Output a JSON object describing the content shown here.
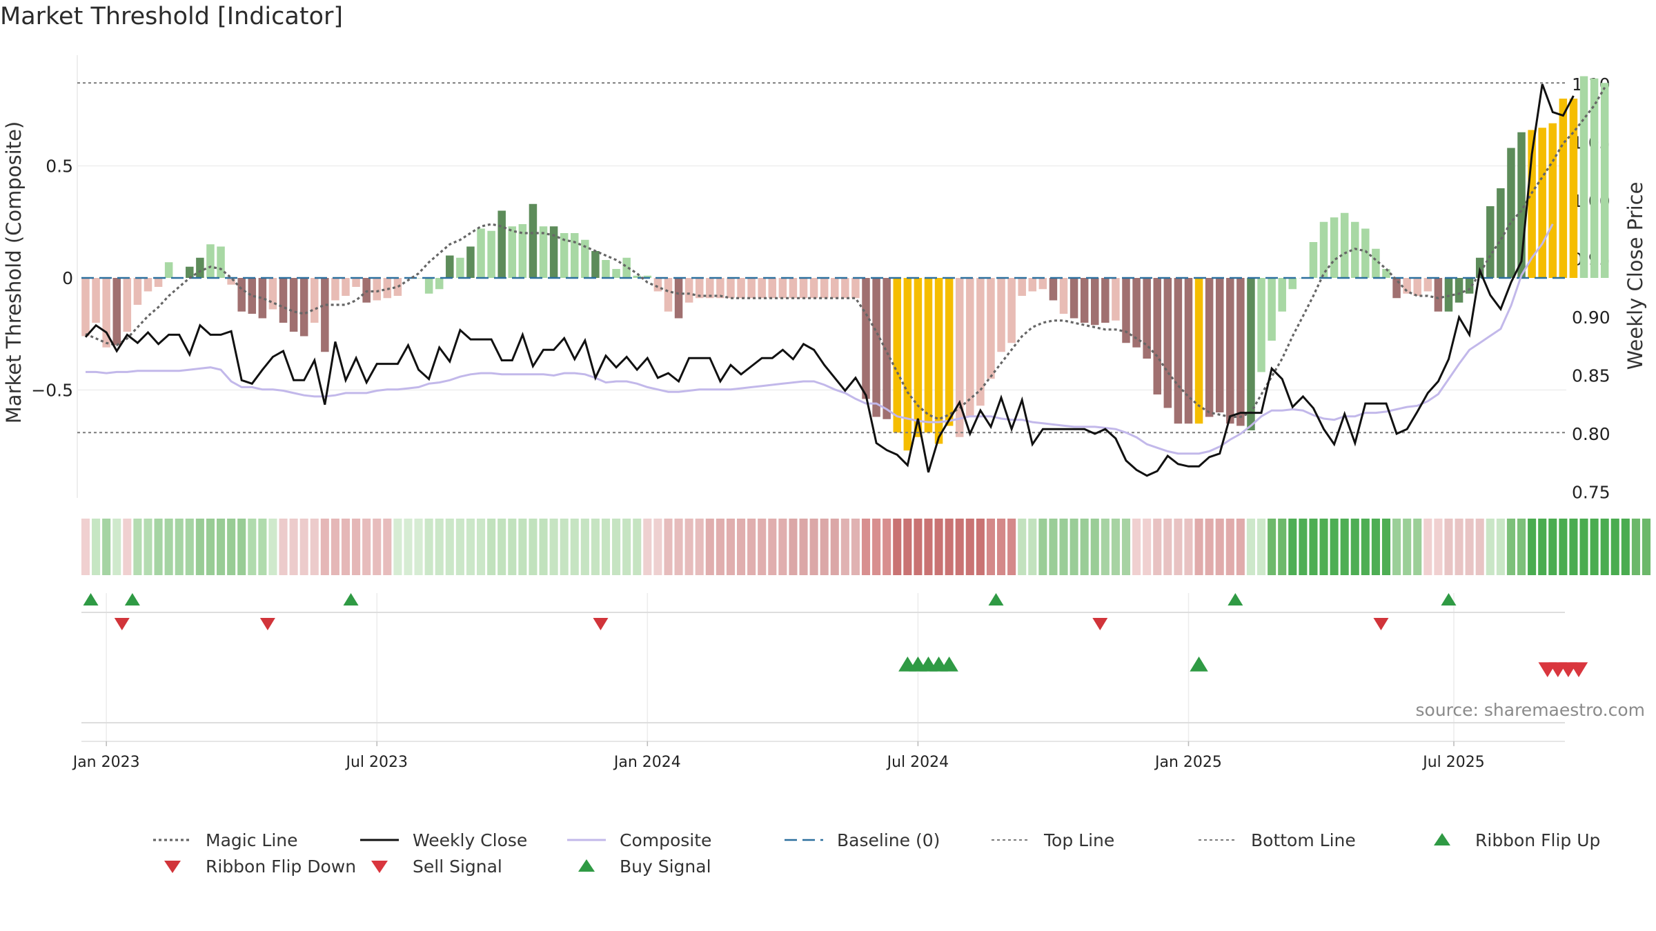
{
  "title": "Market Threshold [Indicator]",
  "source": "source: sharemaestro.com",
  "colors": {
    "magic": "#666666",
    "weekly": "#111111",
    "composite": "#c2b8ea",
    "baseline": "#2b6f9e",
    "thresh": "#7a7a7a",
    "buy": "#2f9a44",
    "sell": "#d9363e",
    "flipUp": "#2f9a44",
    "flipDown": "#d1343a",
    "yellow": "#f5bd00"
  },
  "chart_data": {
    "type": "bar",
    "title": "Market Threshold [Indicator]",
    "ylabel": "Market Threshold (Composite)",
    "y2label": "Weekly Close Price",
    "ylim": [
      -1.0,
      0.95
    ],
    "y2lim": [
      0.745,
      1.125
    ],
    "yticks": [
      {
        "v": 0.5,
        "label": "0.5"
      },
      {
        "v": 0,
        "label": "0"
      },
      {
        "v": -0.5,
        "label": "−0.5"
      }
    ],
    "y2ticks": [
      {
        "v": 0.75,
        "label": "0.75"
      },
      {
        "v": 0.8,
        "label": "0.80"
      },
      {
        "v": 0.85,
        "label": "0.85"
      },
      {
        "v": 0.9,
        "label": "0.90"
      },
      {
        "v": 0.95,
        "label": "0.95"
      },
      {
        "v": 1.0,
        "label": "1.00"
      },
      {
        "v": 1.05,
        "label": "1.05"
      },
      {
        "v": 1.1,
        "label": "1.10"
      }
    ],
    "xticks": [
      {
        "w": 2,
        "label": "Jan 2023"
      },
      {
        "w": 28,
        "label": "Jul 2023"
      },
      {
        "w": 54,
        "label": "Jan 2024"
      },
      {
        "w": 80,
        "label": "Jul 2024"
      },
      {
        "w": 106,
        "label": "Jan 2025"
      },
      {
        "w": 131.5,
        "label": "Jul 2025"
      }
    ],
    "week_start": 0,
    "weeks": 144,
    "top_line": 0.87,
    "bottom_line": -0.69,
    "baseline": 0,
    "bars": [
      -0.26,
      -0.2,
      -0.31,
      -0.3,
      -0.24,
      -0.12,
      -0.06,
      -0.04,
      0.07,
      0,
      0.05,
      0.09,
      0.15,
      0.14,
      -0.03,
      -0.15,
      -0.16,
      -0.18,
      -0.14,
      -0.2,
      -0.24,
      -0.26,
      -0.2,
      -0.33,
      -0.1,
      -0.08,
      -0.04,
      -0.11,
      -0.1,
      -0.09,
      -0.08,
      0,
      0,
      -0.07,
      -0.05,
      0.1,
      0.09,
      0.14,
      0.22,
      0.21,
      0.3,
      0.23,
      0.24,
      0.33,
      0.23,
      0.23,
      0.2,
      0.2,
      0.17,
      0.12,
      0.08,
      0.04,
      0.09,
      0.01,
      0.01,
      -0.06,
      -0.15,
      -0.18,
      -0.11,
      -0.09,
      -0.09,
      -0.09,
      -0.09,
      -0.09,
      -0.09,
      -0.09,
      -0.09,
      -0.09,
      -0.09,
      -0.09,
      -0.09,
      -0.09,
      -0.09,
      -0.09,
      -0.09,
      -0.54,
      -0.62,
      -0.63,
      -0.69,
      -0.77,
      -0.71,
      -0.69,
      -0.74,
      -0.66,
      -0.71,
      -0.62,
      -0.57,
      -0.45,
      -0.33,
      -0.29,
      -0.08,
      -0.06,
      -0.05,
      -0.1,
      -0.16,
      -0.18,
      -0.2,
      -0.21,
      -0.2,
      -0.19,
      -0.29,
      -0.31,
      -0.36,
      -0.52,
      -0.58,
      -0.65,
      -0.65,
      -0.65,
      -0.62,
      -0.6,
      -0.65,
      -0.66,
      -0.68,
      -0.42,
      -0.28,
      -0.15,
      -0.05,
      0,
      0.16,
      0.25,
      0.27,
      0.29,
      0.25,
      0.22,
      0.13,
      0.04,
      -0.09,
      -0.07,
      -0.08,
      -0.06,
      -0.15,
      -0.15,
      -0.11,
      -0.07,
      0.09,
      0.32,
      0.4,
      0.58,
      0.65,
      0.66,
      0.67,
      0.69,
      0.8,
      0.8,
      0.9,
      0.89,
      0.87
    ],
    "bar_groups": [
      {
        "name": "Dark green",
        "color": "#5d8c5a",
        "weeks": [
          10,
          11,
          35,
          37,
          40,
          43,
          45,
          49,
          109,
          110,
          111,
          112,
          131,
          132,
          133,
          134,
          135,
          136,
          137,
          138
        ]
      },
      {
        "name": "Light green",
        "color": "#a8d8a4",
        "weeks": [
          8,
          9,
          12,
          13,
          31,
          32,
          33,
          34,
          36,
          38,
          39,
          41,
          42,
          44,
          46,
          47,
          48,
          50,
          51,
          52,
          53,
          54,
          113,
          114,
          115,
          116,
          130
        ]
      },
      {
        "name": "Dark red",
        "color": "#a07070",
        "weeks": [
          3,
          15,
          16,
          17,
          19,
          20,
          21,
          23,
          27,
          57,
          75,
          76,
          77,
          93,
          95,
          96,
          97,
          98,
          100,
          101,
          102,
          103,
          104,
          105,
          106,
          107,
          108,
          109,
          110,
          111,
          126,
          130
        ]
      },
      {
        "name": "Yellow",
        "color": "#f5bd00",
        "weeks": [
          78,
          79,
          80,
          81,
          82,
          83,
          107,
          139,
          140,
          141,
          142,
          143
        ]
      }
    ],
    "magic_line": [
      -0.25,
      -0.27,
      -0.29,
      -0.3,
      -0.27,
      -0.22,
      -0.17,
      -0.13,
      -0.08,
      -0.04,
      0,
      0.03,
      0.05,
      0.04,
      0,
      -0.05,
      -0.08,
      -0.09,
      -0.11,
      -0.13,
      -0.15,
      -0.16,
      -0.14,
      -0.12,
      -0.12,
      -0.12,
      -0.1,
      -0.06,
      -0.06,
      -0.05,
      -0.04,
      -0.01,
      0.02,
      0.07,
      0.11,
      0.15,
      0.17,
      0.2,
      0.23,
      0.24,
      0.23,
      0.21,
      0.2,
      0.2,
      0.2,
      0.19,
      0.17,
      0.16,
      0.14,
      0.12,
      0.1,
      0.08,
      0.05,
      0.02,
      -0.02,
      -0.04,
      -0.06,
      -0.07,
      -0.07,
      -0.08,
      -0.08,
      -0.08,
      -0.09,
      -0.09,
      -0.09,
      -0.09,
      -0.09,
      -0.09,
      -0.09,
      -0.09,
      -0.09,
      -0.09,
      -0.09,
      -0.09,
      -0.09,
      -0.16,
      -0.24,
      -0.33,
      -0.42,
      -0.51,
      -0.57,
      -0.61,
      -0.63,
      -0.61,
      -0.58,
      -0.54,
      -0.5,
      -0.44,
      -0.38,
      -0.32,
      -0.26,
      -0.22,
      -0.2,
      -0.19,
      -0.19,
      -0.2,
      -0.21,
      -0.22,
      -0.23,
      -0.23,
      -0.24,
      -0.27,
      -0.3,
      -0.35,
      -0.42,
      -0.48,
      -0.53,
      -0.57,
      -0.6,
      -0.61,
      -0.62,
      -0.62,
      -0.6,
      -0.52,
      -0.44,
      -0.36,
      -0.26,
      -0.17,
      -0.08,
      0.02,
      0.08,
      0.11,
      0.13,
      0.12,
      0.08,
      0.04,
      -0.01,
      -0.06,
      -0.08,
      -0.08,
      -0.09,
      -0.08,
      -0.07,
      -0.05,
      0.02,
      0.1,
      0.17,
      0.25,
      0.3,
      0.38,
      0.45,
      0.52,
      0.6,
      0.65,
      0.71,
      0.77,
      0.85
    ],
    "composite": [
      0.853,
      0.853,
      0.852,
      0.853,
      0.853,
      0.854,
      0.854,
      0.854,
      0.854,
      0.854,
      0.855,
      0.856,
      0.857,
      0.855,
      0.845,
      0.84,
      0.84,
      0.838,
      0.838,
      0.837,
      0.835,
      0.833,
      0.832,
      0.832,
      0.833,
      0.835,
      0.835,
      0.835,
      0.837,
      0.838,
      0.838,
      0.839,
      0.84,
      0.843,
      0.844,
      0.846,
      0.849,
      0.851,
      0.852,
      0.852,
      0.851,
      0.851,
      0.851,
      0.851,
      0.851,
      0.85,
      0.852,
      0.852,
      0.851,
      0.848,
      0.844,
      0.845,
      0.845,
      0.843,
      0.84,
      0.838,
      0.836,
      0.836,
      0.837,
      0.838,
      0.838,
      0.838,
      0.838,
      0.839,
      0.84,
      0.841,
      0.842,
      0.843,
      0.844,
      0.845,
      0.845,
      0.842,
      0.838,
      0.835,
      0.83,
      0.826,
      0.826,
      0.821,
      0.815,
      0.813,
      0.811,
      0.81,
      0.81,
      0.811,
      0.813,
      0.815,
      0.815,
      0.815,
      0.813,
      0.812,
      0.812,
      0.81,
      0.809,
      0.808,
      0.807,
      0.806,
      0.806,
      0.806,
      0.805,
      0.804,
      0.801,
      0.797,
      0.791,
      0.788,
      0.785,
      0.783,
      0.783,
      0.783,
      0.785,
      0.789,
      0.795,
      0.8,
      0.807,
      0.815,
      0.82,
      0.82,
      0.821,
      0.82,
      0.816,
      0.813,
      0.812,
      0.815,
      0.815,
      0.818,
      0.818,
      0.819,
      0.821,
      0.823,
      0.824,
      0.828,
      0.834,
      0.847,
      0.86,
      0.872,
      0.878,
      0.884,
      0.89,
      0.91,
      0.936,
      0.951,
      0.963,
      0.98
    ],
    "weekly_close": [
      0.883,
      0.893,
      0.887,
      0.871,
      0.885,
      0.878,
      0.887,
      0.877,
      0.885,
      0.885,
      0.868,
      0.893,
      0.885,
      0.885,
      0.888,
      0.846,
      0.843,
      0.855,
      0.866,
      0.871,
      0.846,
      0.846,
      0.863,
      0.825,
      0.879,
      0.846,
      0.865,
      0.844,
      0.86,
      0.86,
      0.86,
      0.876,
      0.855,
      0.847,
      0.874,
      0.862,
      0.889,
      0.881,
      0.881,
      0.881,
      0.863,
      0.863,
      0.885,
      0.858,
      0.872,
      0.872,
      0.882,
      0.864,
      0.88,
      0.848,
      0.867,
      0.857,
      0.866,
      0.855,
      0.865,
      0.848,
      0.852,
      0.845,
      0.865,
      0.865,
      0.865,
      0.845,
      0.859,
      0.851,
      0.858,
      0.865,
      0.865,
      0.872,
      0.864,
      0.877,
      0.872,
      0.859,
      0.848,
      0.837,
      0.848,
      0.833,
      0.792,
      0.786,
      0.782,
      0.773,
      0.813,
      0.767,
      0.797,
      0.812,
      0.827,
      0.8,
      0.82,
      0.806,
      0.831,
      0.804,
      0.829,
      0.791,
      0.804,
      0.804,
      0.804,
      0.804,
      0.804,
      0.8,
      0.804,
      0.796,
      0.777,
      0.769,
      0.764,
      0.768,
      0.781,
      0.774,
      0.772,
      0.772,
      0.78,
      0.783,
      0.815,
      0.818,
      0.818,
      0.818,
      0.856,
      0.847,
      0.823,
      0.832,
      0.822,
      0.804,
      0.791,
      0.817,
      0.792,
      0.826,
      0.826,
      0.826,
      0.8,
      0.804,
      0.819,
      0.835,
      0.845,
      0.864,
      0.9,
      0.885,
      0.94,
      0.919,
      0.907,
      0.93,
      0.948,
      1.04,
      1.1,
      1.076,
      1.073,
      1.09
    ],
    "ribbon": [
      {
        "c": "#f0d0d0",
        "n": 1
      },
      {
        "c": "#c6e6c3",
        "n": 1
      },
      {
        "c": "#a5d4a3",
        "n": 1
      },
      {
        "c": "#cfe9cc",
        "n": 1
      },
      {
        "c": "#f0d0d0",
        "n": 1
      },
      {
        "c": "#b4dcb1",
        "n": 2
      },
      {
        "c": "#a5d4a3",
        "n": 4
      },
      {
        "c": "#98cc95",
        "n": 5
      },
      {
        "c": "#b0dbad",
        "n": 2
      },
      {
        "c": "#cfe9cc",
        "n": 1
      },
      {
        "c": "#eccbcb",
        "n": 4
      },
      {
        "c": "#e5b7b7",
        "n": 4
      },
      {
        "c": "#e7bcbc",
        "n": 3
      },
      {
        "c": "#d6ecd3",
        "n": 3
      },
      {
        "c": "#cbe7c8",
        "n": 6
      },
      {
        "c": "#c1e2bd",
        "n": 6
      },
      {
        "c": "#c6e4c2",
        "n": 9
      },
      {
        "c": "#eed0d0",
        "n": 2
      },
      {
        "c": "#e6bcbc",
        "n": 4
      },
      {
        "c": "#e0aeae",
        "n": 8
      },
      {
        "c": "#dba7a7",
        "n": 5
      },
      {
        "c": "#e0b2b2",
        "n": 2
      },
      {
        "c": "#d88f8f",
        "n": 3
      },
      {
        "c": "#c97373",
        "n": 9
      },
      {
        "c": "#d48989",
        "n": 3
      },
      {
        "c": "#c2e2be",
        "n": 2
      },
      {
        "c": "#9acd97",
        "n": 6
      },
      {
        "c": "#a7d3a3",
        "n": 3
      },
      {
        "c": "#f0d0d0",
        "n": 2
      },
      {
        "c": "#e8c2c2",
        "n": 4
      },
      {
        "c": "#e0abab",
        "n": 5
      },
      {
        "c": "#cde8ca",
        "n": 2
      },
      {
        "c": "#6db96b",
        "n": 2
      },
      {
        "c": "#4eae54",
        "n": 10
      },
      {
        "c": "#9bcf98",
        "n": 3
      },
      {
        "c": "#f0d0d0",
        "n": 2
      },
      {
        "c": "#e8c4c4",
        "n": 4
      },
      {
        "c": "#c9e6c6",
        "n": 2
      },
      {
        "c": "#7dc07a",
        "n": 2
      },
      {
        "c": "#4aac50",
        "n": 10
      },
      {
        "c": "#6cb86a",
        "n": 2
      }
    ],
    "ribbon_flip_up": [
      0.5,
      4.5,
      25.5,
      87.5,
      110.5,
      131
    ],
    "ribbon_flip_down": [
      3.5,
      17.5,
      49.5,
      97.5,
      124.5
    ],
    "buy_signal": [
      79,
      80,
      81,
      82,
      83,
      107
    ],
    "sell_signal": [
      140.5,
      141.5,
      142.5,
      143.5
    ]
  },
  "legend": [
    {
      "key": "magic",
      "label": "Magic Line"
    },
    {
      "key": "weekly",
      "label": "Weekly Close"
    },
    {
      "key": "composite",
      "label": "Composite"
    },
    {
      "key": "baseline",
      "label": "Baseline (0)"
    },
    {
      "key": "top",
      "label": "Top Line"
    },
    {
      "key": "bottom",
      "label": "Bottom Line"
    },
    {
      "key": "flipUp",
      "label": "Ribbon Flip Up"
    },
    {
      "key": "flipDown",
      "label": "Ribbon Flip Down"
    },
    {
      "key": "sell",
      "label": "Sell Signal"
    },
    {
      "key": "buy",
      "label": "Buy Signal"
    }
  ]
}
